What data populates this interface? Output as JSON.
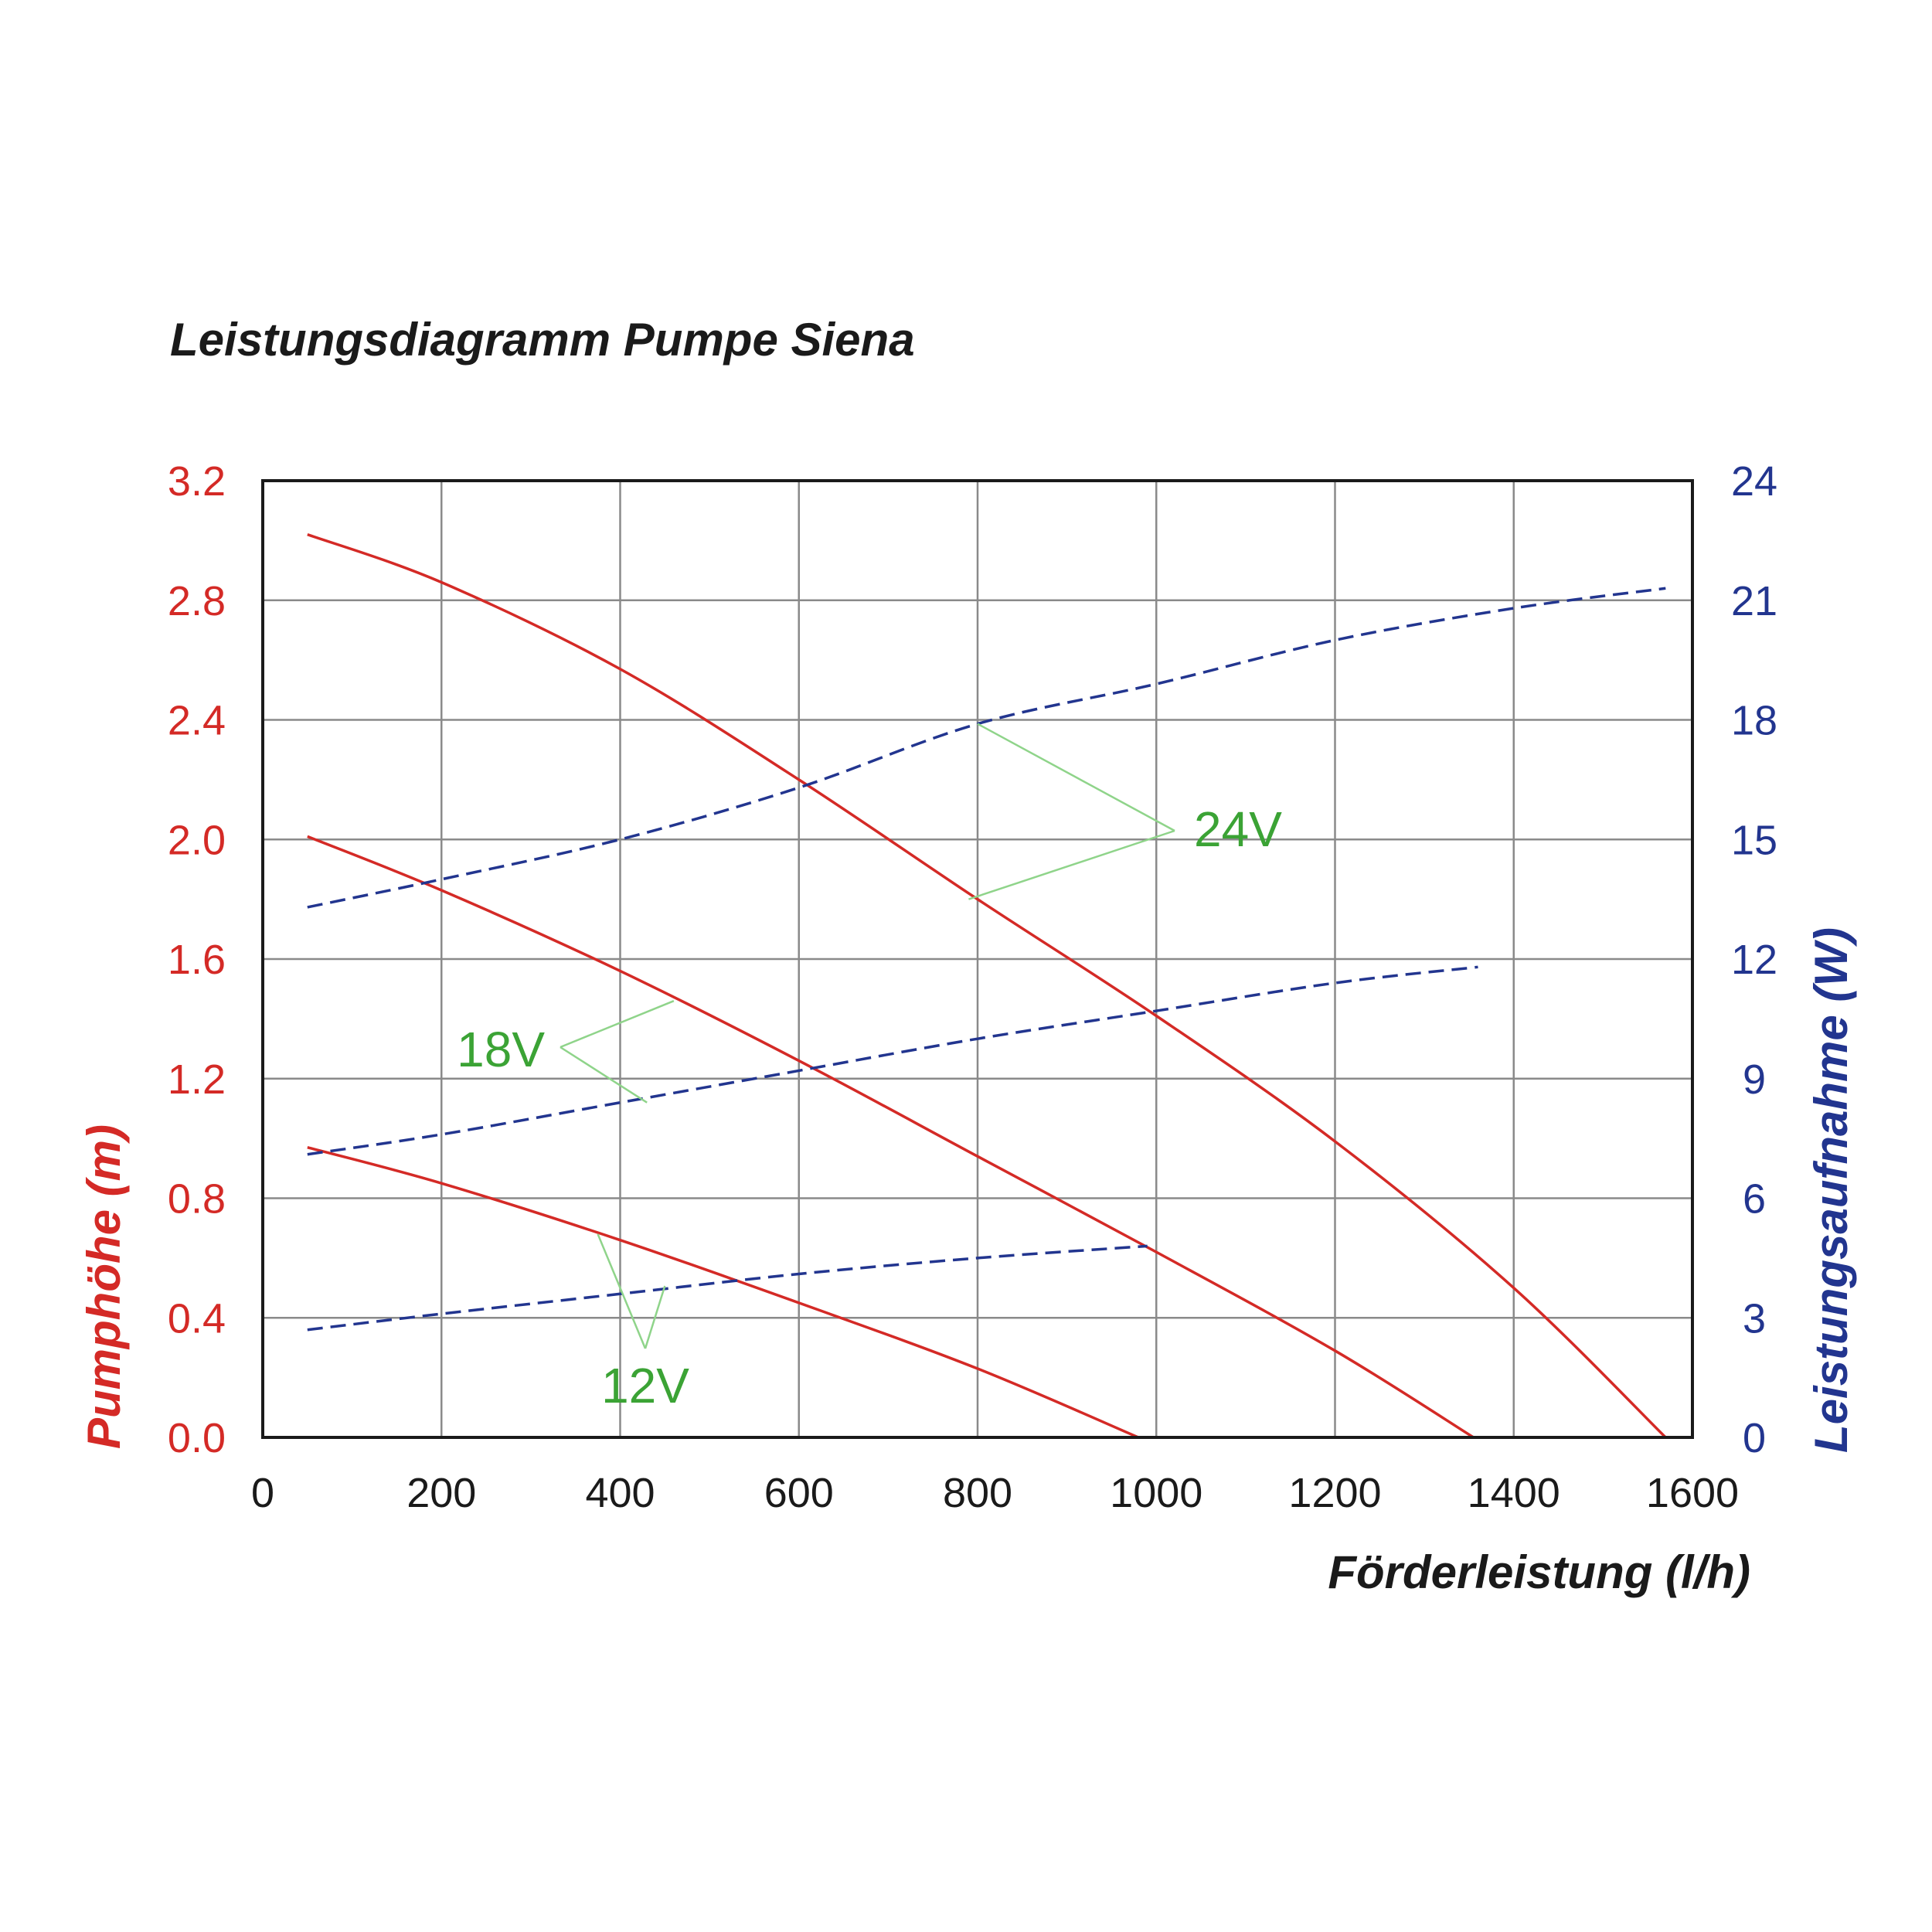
{
  "chart_data": {
    "type": "line",
    "title": "Leistungsdiagramm Pumpe Siena",
    "xlabel": "Förderleistung (l/h)",
    "ylabel_left": "Pumphöhe (m)",
    "ylabel_right": "Leistungsaufnahme (W)",
    "xlim": [
      0,
      1600
    ],
    "ylim_left": [
      0,
      3.2
    ],
    "ylim_right": [
      0,
      24
    ],
    "x_ticks": [
      "0",
      "200",
      "400",
      "600",
      "800",
      "1000",
      "1200",
      "1400",
      "1600"
    ],
    "y_left_ticks": [
      "0.0",
      "0.4",
      "0.8",
      "1.2",
      "1.6",
      "2.0",
      "2.4",
      "2.8",
      "3.2"
    ],
    "y_right_ticks": [
      "0",
      "3",
      "6",
      "9",
      "12",
      "15",
      "18",
      "21",
      "24"
    ],
    "grid": true,
    "colors": {
      "head": "#d42a26",
      "power": "#22358f",
      "voltage_label": "#3ba335",
      "leader": "#8fd48a",
      "grid": "#8a8a8a",
      "frame": "#1a1a1a",
      "text": "#1a1a1a"
    },
    "head_series": [
      {
        "name": "24V",
        "axis": "left",
        "x": [
          50,
          200,
          400,
          600,
          800,
          1000,
          1200,
          1400,
          1570
        ],
        "y": [
          3.02,
          2.86,
          2.57,
          2.2,
          1.8,
          1.41,
          0.99,
          0.5,
          0.0
        ]
      },
      {
        "name": "18V",
        "axis": "left",
        "x": [
          50,
          200,
          400,
          600,
          800,
          1000,
          1200,
          1355
        ],
        "y": [
          2.01,
          1.83,
          1.56,
          1.26,
          0.94,
          0.62,
          0.29,
          0.0
        ]
      },
      {
        "name": "12V",
        "axis": "left",
        "x": [
          50,
          200,
          400,
          600,
          800,
          980
        ],
        "y": [
          0.97,
          0.85,
          0.66,
          0.45,
          0.23,
          0.0
        ]
      }
    ],
    "power_series": [
      {
        "name": "24V",
        "axis": "right",
        "x": [
          50,
          200,
          400,
          600,
          800,
          1000,
          1200,
          1400,
          1570
        ],
        "y": [
          13.3,
          14.0,
          15.0,
          16.3,
          17.9,
          18.9,
          20.0,
          20.8,
          21.3
        ]
      },
      {
        "name": "18V",
        "axis": "right",
        "x": [
          50,
          200,
          400,
          600,
          800,
          1000,
          1200,
          1360
        ],
        "y": [
          7.1,
          7.6,
          8.4,
          9.2,
          10.0,
          10.7,
          11.4,
          11.8
        ]
      },
      {
        "name": "12V",
        "axis": "right",
        "x": [
          50,
          200,
          400,
          600,
          800,
          990
        ],
        "y": [
          2.7,
          3.1,
          3.6,
          4.1,
          4.5,
          4.8
        ]
      }
    ],
    "annotations": [
      {
        "text": "24V",
        "targets": [
          [
            800,
            17.9,
            "right"
          ],
          [
            790,
            1.8,
            "left"
          ]
        ]
      },
      {
        "text": "18V",
        "targets": [
          [
            460,
            1.46,
            "left"
          ],
          [
            430,
            8.4,
            "right"
          ]
        ]
      },
      {
        "text": "12V",
        "targets": [
          [
            375,
            0.68,
            "left"
          ],
          [
            450,
            3.8,
            "right"
          ]
        ]
      }
    ]
  }
}
